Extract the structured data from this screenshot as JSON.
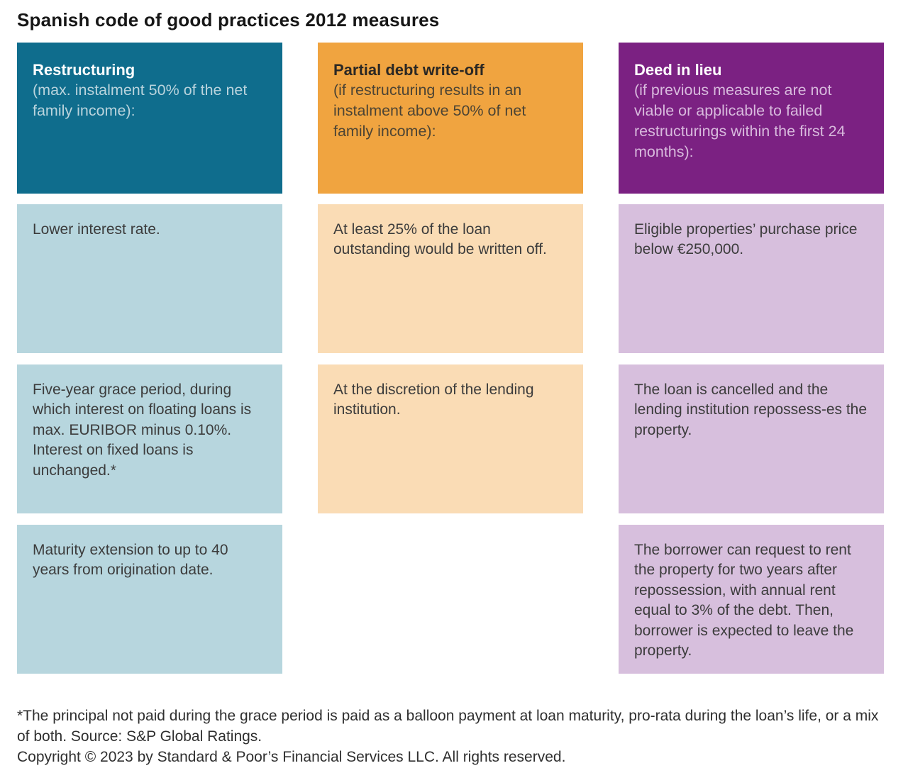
{
  "title": "Spanish code of good practices 2012 measures",
  "columns": [
    {
      "id": "restructuring",
      "header": {
        "title": "Restructuring",
        "subtitle": "(max. instalment 50% of the net family income):"
      },
      "cells": [
        "Lower interest rate.",
        "Five-year grace period, during which interest on floating loans is max. EURIBOR minus 0.10%. Interest on fixed loans is unchanged.*",
        "Maturity extension to up to 40 years from origination date."
      ],
      "colors": {
        "header_bg": "#0f6d8d",
        "header_title_text": "#ffffff",
        "header_subtitle_text": "#bad4dd",
        "cell_bg": "#b7d6de"
      }
    },
    {
      "id": "partial-debt-write-off",
      "header": {
        "title": "Partial debt write-off",
        "subtitle": "(if restructuring results in an instalment above 50% of net family income):"
      },
      "cells": [
        "At least 25% of the loan outstanding would be written off.",
        "At the discretion of the lending institution."
      ],
      "colors": {
        "header_bg": "#f0a440",
        "header_title_text": "#2b2824",
        "header_subtitle_text": "#4c4434",
        "cell_bg": "#fadcb5"
      }
    },
    {
      "id": "deed-in-lieu",
      "header": {
        "title": "Deed in lieu",
        "subtitle": "(if previous measures are not viable or applicable to failed restructurings within the first 24 months):"
      },
      "cells": [
        "Eligible properties’ purchase price below €250,000.",
        "The loan is cancelled and the lending institution repossess-es the property.",
        "The borrower can request to rent the property for two years after repossession, with annual rent equal to 3% of the debt. Then, borrower is expected to leave the property."
      ],
      "colors": {
        "header_bg": "#7b2182",
        "header_title_text": "#ffffff",
        "header_subtitle_text": "#d8badd",
        "cell_bg": "#d7bfdd"
      }
    }
  ],
  "footer": {
    "footnote": "*The principal not paid during the grace period is paid as a balloon payment at loan maturity, pro-rata during the loan’s life, or a mix of both. Source: S&P Global Ratings.",
    "copyright": "Copyright © 2023 by Standard & Poor’s Financial Services LLC. All rights reserved."
  }
}
